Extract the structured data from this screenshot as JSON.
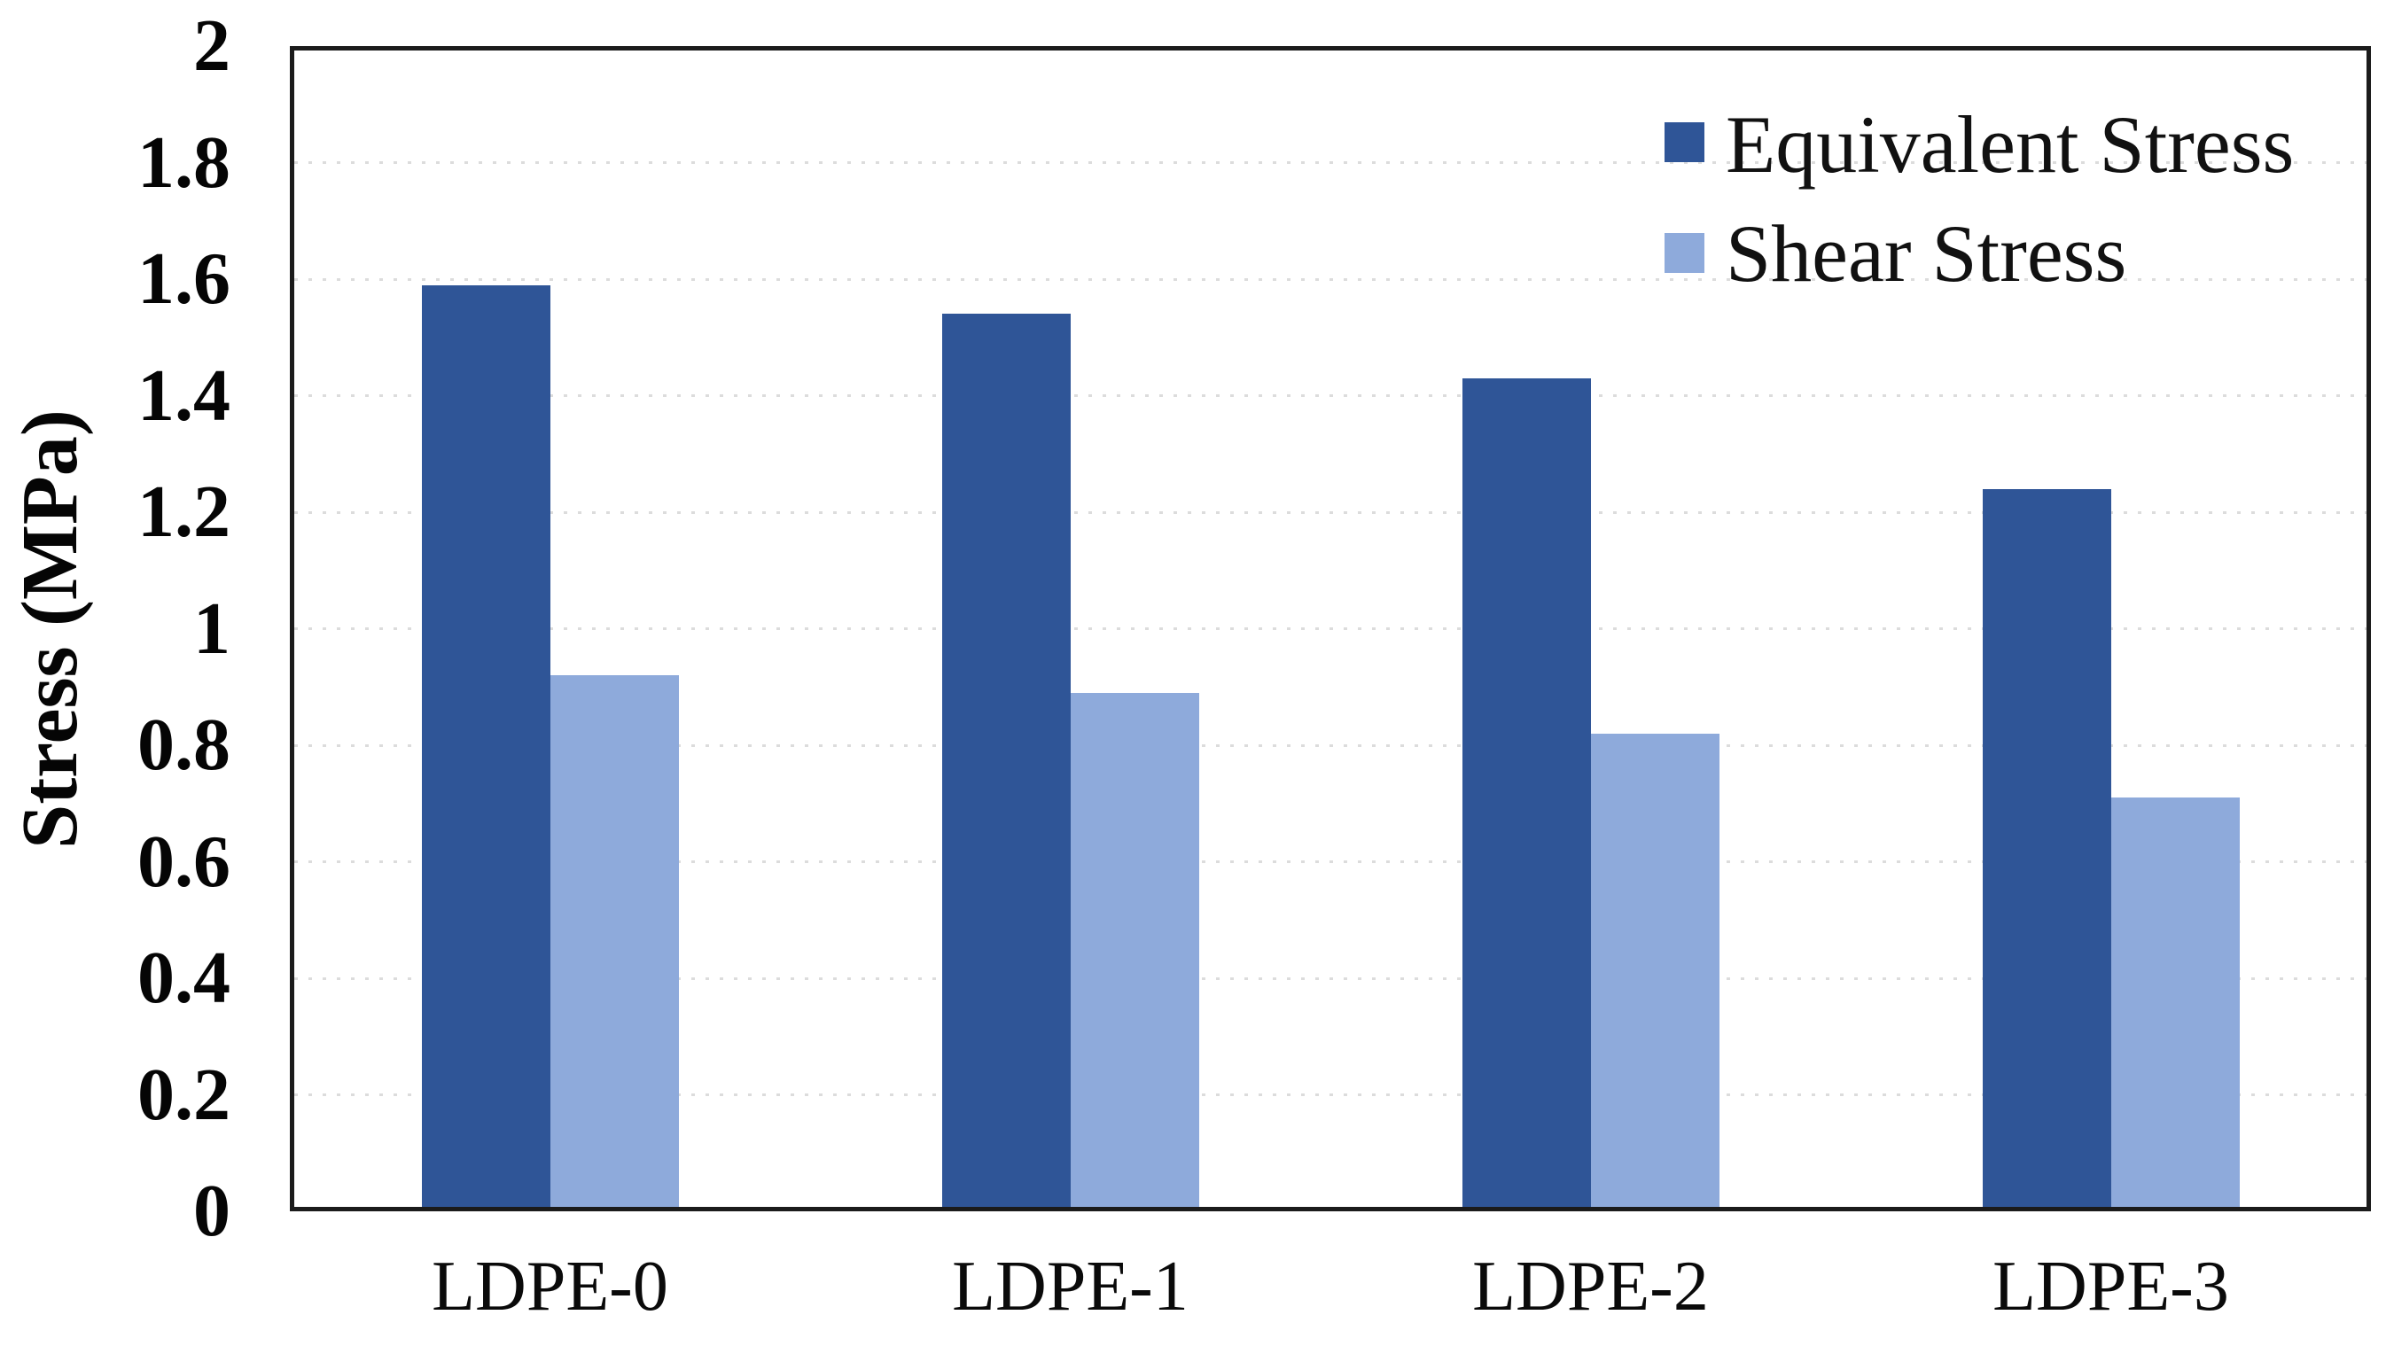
{
  "chart_data": {
    "type": "bar",
    "title": "",
    "xlabel": "",
    "ylabel": "Stress (MPa)",
    "categories": [
      "LDPE-0",
      "LDPE-1",
      "LDPE-2",
      "LDPE-3"
    ],
    "series": [
      {
        "name": "Equivalent Stress",
        "color": "#2F5597",
        "values": [
          1.59,
          1.54,
          1.43,
          1.24
        ]
      },
      {
        "name": "Shear Stress",
        "color": "#8EAADB",
        "values": [
          0.92,
          0.89,
          0.82,
          0.71
        ]
      }
    ],
    "ylim": [
      0,
      2
    ],
    "ytick_step": 0.2,
    "ytick_labels": [
      "0",
      "0.2",
      "0.4",
      "0.6",
      "0.8",
      "1",
      "1.2",
      "1.4",
      "1.6",
      "1.8",
      "2"
    ],
    "grid": "horizontal dotted major gridlines",
    "legend_position": "top-right inside plot",
    "plot_background": "#ffffff",
    "axis_color": "#1b1b1b",
    "gridline_color": "#dcdcdc"
  }
}
